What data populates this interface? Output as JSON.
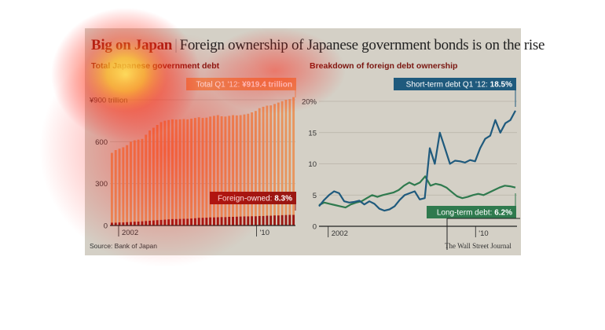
{
  "header": {
    "headline_bold": "Big on Japan",
    "headline_sep": "|",
    "headline_rest": "Foreign ownership of Japanese government bonds is on the rise"
  },
  "footer": {
    "source": "Source: Bank of Japan",
    "credit": "The Wall Street Journal"
  },
  "colors": {
    "bars_total": "#e8965e",
    "bars_foreign": "#9b1712",
    "short_term": "#1f5a7d",
    "long_term": "#2f7a4e",
    "title_red": "#8a1a14"
  },
  "chart_data": [
    {
      "type": "bar",
      "title": "Total Japanese government debt",
      "unit_label": "¥900 trillion",
      "yticks": [
        "¥900 trillion",
        "600",
        "300",
        "0"
      ],
      "ytick_values": [
        900,
        600,
        300,
        0
      ],
      "ylim": [
        0,
        900
      ],
      "xtick_labels": [
        "2002",
        "'10"
      ],
      "x_start": 2001.5,
      "x_end": 2012.25,
      "annotations": {
        "total": {
          "prefix": "Total Q1 '12:",
          "value": "¥919.4 trillion"
        },
        "foreign": {
          "prefix": "Foreign-owned:",
          "value": "8.3%"
        }
      },
      "series": [
        {
          "name": "Total",
          "values": [
            520,
            540,
            550,
            560,
            575,
            600,
            610,
            615,
            620,
            650,
            680,
            700,
            720,
            740,
            750,
            755,
            760,
            758,
            760,
            762,
            760,
            765,
            770,
            775,
            770,
            772,
            780,
            785,
            790,
            782,
            780,
            785,
            790,
            788,
            790,
            795,
            800,
            810,
            820,
            840,
            850,
            858,
            860,
            870,
            880,
            890,
            900,
            905,
            919
          ]
        },
        {
          "name": "Foreign-owned",
          "values": [
            20,
            20,
            22,
            22,
            24,
            25,
            27,
            28,
            30,
            32,
            34,
            36,
            38,
            40,
            42,
            44,
            46,
            46,
            47,
            48,
            48,
            50,
            52,
            55,
            55,
            56,
            58,
            58,
            59,
            60,
            60,
            62,
            62,
            63,
            64,
            65,
            65,
            66,
            66,
            68,
            68,
            70,
            70,
            72,
            72,
            74,
            75,
            76,
            76
          ]
        }
      ]
    },
    {
      "type": "line",
      "title": "Breakdown of foreign debt ownership",
      "yticks": [
        "20%",
        "15",
        "10",
        "5",
        "0"
      ],
      "ytick_values": [
        20,
        15,
        10,
        5,
        0
      ],
      "ylim": [
        0,
        20
      ],
      "xtick_labels": [
        "2002",
        "'10"
      ],
      "x_start": 2001.5,
      "x_end": 2012.25,
      "annotations": {
        "short": {
          "prefix": "Short-term debt Q1 '12:",
          "value": "18.5%"
        },
        "long": {
          "prefix": "Long-term debt:",
          "value": "6.2%"
        }
      },
      "series": [
        {
          "name": "Short-term debt",
          "values": [
            3.2,
            4.2,
            5.0,
            5.6,
            5.3,
            4.0,
            3.8,
            3.9,
            4.1,
            3.5,
            4.0,
            3.6,
            2.8,
            2.5,
            2.7,
            3.2,
            4.2,
            5.0,
            5.3,
            5.6,
            4.3,
            4.5,
            12.5,
            10.0,
            15.0,
            12.5,
            10.0,
            10.5,
            10.4,
            10.2,
            10.6,
            10.4,
            12.5,
            14.0,
            14.5,
            17.0,
            15.0,
            16.5,
            17.0,
            18.5
          ]
        },
        {
          "name": "Long-term debt",
          "values": [
            3.4,
            3.8,
            3.6,
            3.4,
            3.2,
            3.0,
            3.5,
            3.8,
            4.0,
            4.5,
            5.0,
            4.7,
            5.0,
            5.2,
            5.4,
            5.8,
            6.5,
            7.0,
            6.6,
            7.0,
            8.0,
            6.5,
            6.8,
            6.6,
            6.2,
            5.5,
            4.8,
            4.5,
            4.7,
            5.0,
            5.2,
            5.0,
            5.4,
            5.8,
            6.2,
            6.5,
            6.4,
            6.2
          ]
        }
      ]
    }
  ]
}
